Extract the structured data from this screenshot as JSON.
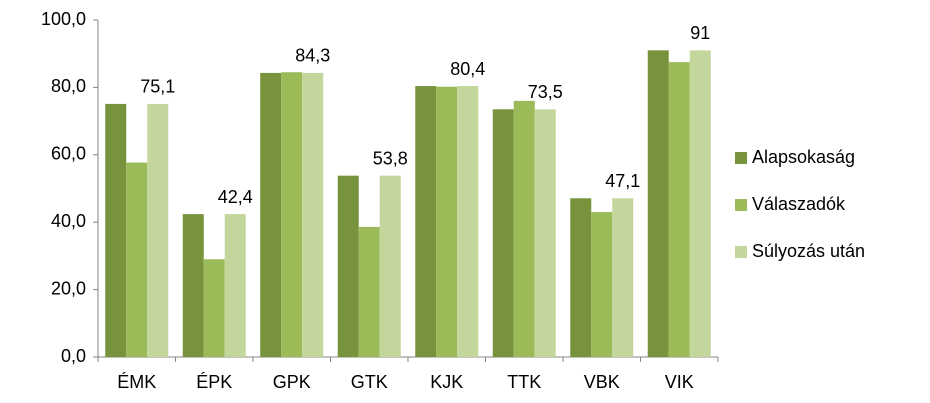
{
  "chart_data": {
    "type": "bar",
    "categories": [
      "ÉMK",
      "ÉPK",
      "GPK",
      "GTK",
      "KJK",
      "TTK",
      "VBK",
      "VIK"
    ],
    "series": [
      {
        "name": "Alapsokaság",
        "color": "#77933c",
        "values": [
          75.1,
          42.4,
          84.3,
          53.8,
          80.4,
          73.5,
          47.1,
          91.0
        ]
      },
      {
        "name": "Válaszadók",
        "color": "#9bbb59",
        "values": [
          57.7,
          29.0,
          84.5,
          38.6,
          80.2,
          76.0,
          43.0,
          87.5
        ]
      },
      {
        "name": "Súlyozás után",
        "color": "#c3d69b",
        "values": [
          75.1,
          42.4,
          84.3,
          53.8,
          80.4,
          73.5,
          47.1,
          91
        ],
        "value_labels": [
          "75,1",
          "42,4",
          "84,3",
          "53,8",
          "80,4",
          "73,5",
          "47,1",
          "91"
        ]
      }
    ],
    "ylim": [
      0,
      100
    ],
    "yticks": [
      {
        "value": 0,
        "label": "0,0"
      },
      {
        "value": 20,
        "label": "20,0"
      },
      {
        "value": 40,
        "label": "40,0"
      },
      {
        "value": 60,
        "label": "60,0"
      },
      {
        "value": 80,
        "label": "80,0"
      },
      {
        "value": 100,
        "label": "100,0"
      }
    ],
    "grid": false,
    "legend": "right"
  }
}
